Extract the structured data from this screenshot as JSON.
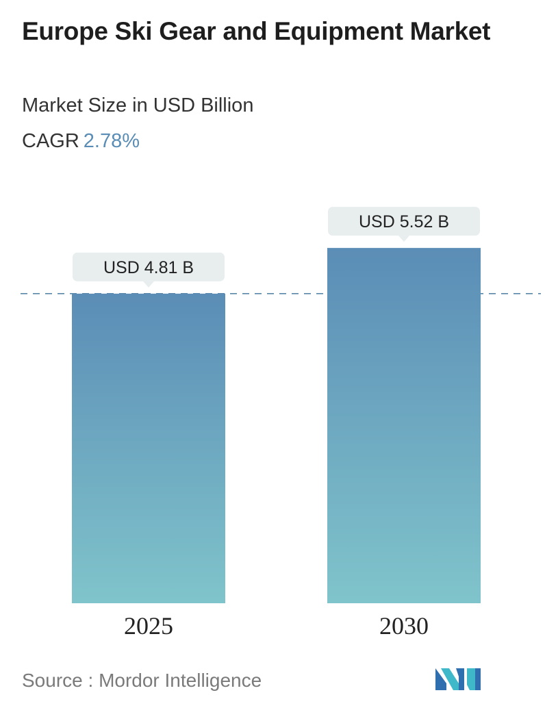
{
  "header": {
    "title": "Europe Ski Gear and Equipment Market",
    "subtitle": "Market Size in USD Billion",
    "cagr_label": "CAGR",
    "cagr_value": "2.78%"
  },
  "footer": {
    "source_label": "Source :",
    "source_name": "Mordor Intelligence",
    "logo_icon": "mordor-intelligence-logo-icon"
  },
  "colors": {
    "bar_top": "#5b8db6",
    "bar_bottom": "#80c4cb",
    "label_box": "#e8edee",
    "dashed_line": "#5a86a8",
    "accent": "#5a8db5"
  },
  "chart_data": {
    "type": "bar",
    "categories": [
      "2025",
      "2030"
    ],
    "values": [
      4.81,
      5.52
    ],
    "value_labels": [
      "USD 4.81 B",
      "USD 5.52 B"
    ],
    "title": "Europe Ski Gear and Equipment Market",
    "subtitle": "Market Size in USD Billion",
    "xlabel": "",
    "ylabel": "",
    "grid": false,
    "reference_line": "dashed line at the 2025 value"
  }
}
